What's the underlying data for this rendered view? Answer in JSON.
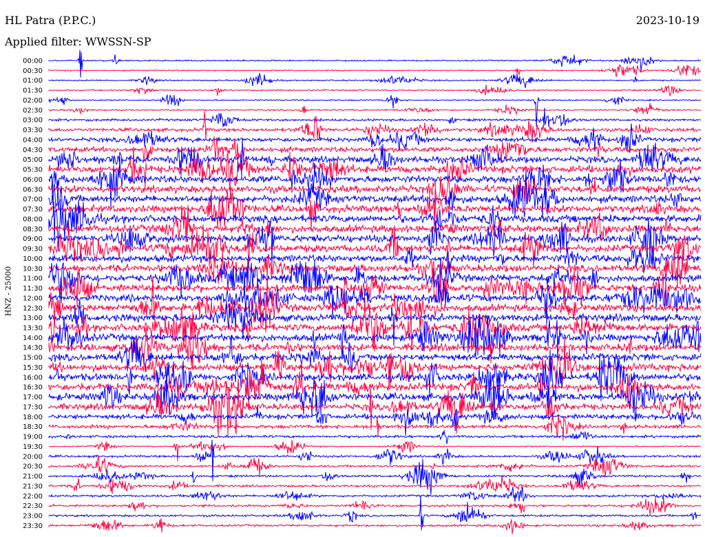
{
  "header": {
    "station": "HL Patra (P.P.C.)",
    "date": "2023-10-19",
    "filter": "Applied filter: WWSSN-SP"
  },
  "channel_label": "HNZ - 25000",
  "colors": {
    "trace_a": "#0000ff",
    "trace_b": "#ff0040",
    "background": "#ffffff",
    "text": "#000000"
  },
  "chart_data": {
    "type": "line",
    "title": "HL Patra (P.P.C.)",
    "date": "2023-10-19",
    "filter": "WWSSN-SP",
    "ylabel": "HNZ - 25000",
    "xlabel": "",
    "row_labels": [
      "00:00",
      "00:30",
      "01:00",
      "01:30",
      "02:00",
      "02:30",
      "03:00",
      "03:30",
      "04:00",
      "04:30",
      "05:00",
      "05:30",
      "06:00",
      "06:30",
      "07:00",
      "07:30",
      "08:00",
      "08:30",
      "09:00",
      "09:30",
      "10:00",
      "10:30",
      "11:00",
      "11:30",
      "12:00",
      "12:30",
      "13:00",
      "13:30",
      "14:00",
      "14:30",
      "15:00",
      "15:30",
      "16:00",
      "16:30",
      "17:00",
      "17:30",
      "18:00",
      "18:30",
      "19:00",
      "19:30",
      "20:00",
      "20:30",
      "21:00",
      "21:30",
      "22:00",
      "22:30",
      "23:00",
      "23:30"
    ],
    "row_colors": [
      "blue",
      "red"
    ],
    "grid": false,
    "legend": "none"
  }
}
